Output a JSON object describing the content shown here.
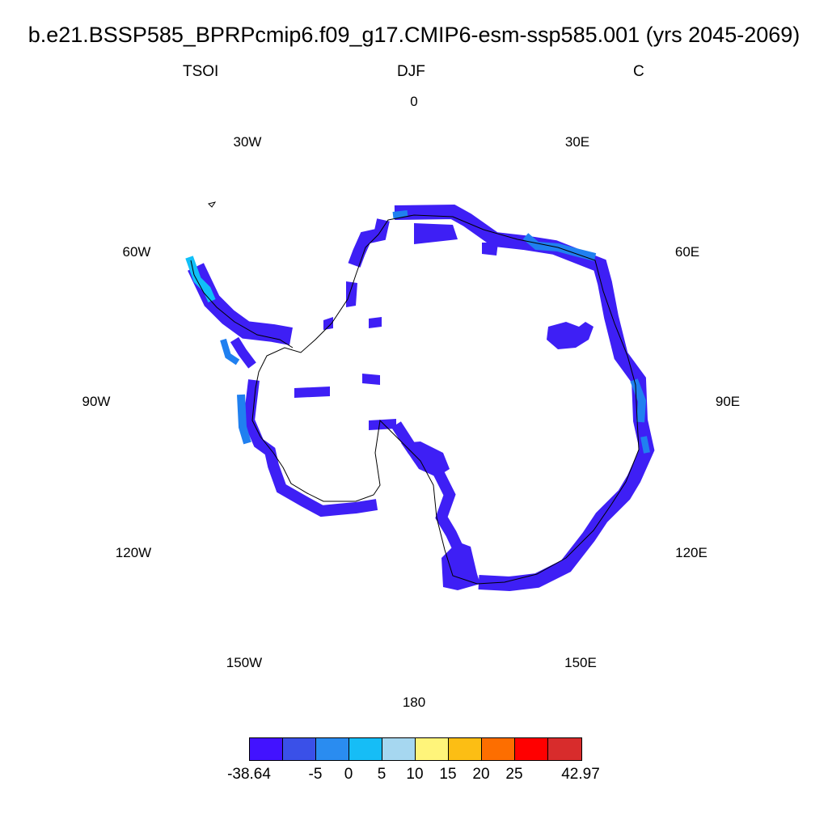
{
  "header": {
    "title": "b.e21.BSSP585_BPRPcmip6.f09_g17.CMIP6-esm-ssp585.001 (yrs 2045-2069)",
    "left": "TSOI",
    "center": "DJF",
    "right": "C"
  },
  "map": {
    "projection": "south polar stereographic",
    "region": "Antarctica",
    "field_color": "#3e1ff5",
    "coast_field_colors": [
      "#2f4fe0",
      "#2080f0",
      "#10c0f8"
    ],
    "longitude_labels": [
      "0",
      "30E",
      "60E",
      "90E",
      "120E",
      "150E",
      "180",
      "150W",
      "120W",
      "90W",
      "60W",
      "30W"
    ]
  },
  "colorbar": {
    "colors": [
      "#4212ff",
      "#3a50e8",
      "#2a8cf0",
      "#16bdf6",
      "#a6d7f0",
      "#fff47a",
      "#fcbe14",
      "#fd6e00",
      "#ff0000",
      "#d82c2c"
    ],
    "labels": [
      "-38.64",
      "-5",
      "0",
      "5",
      "10",
      "15",
      "20",
      "25",
      "42.97"
    ]
  }
}
